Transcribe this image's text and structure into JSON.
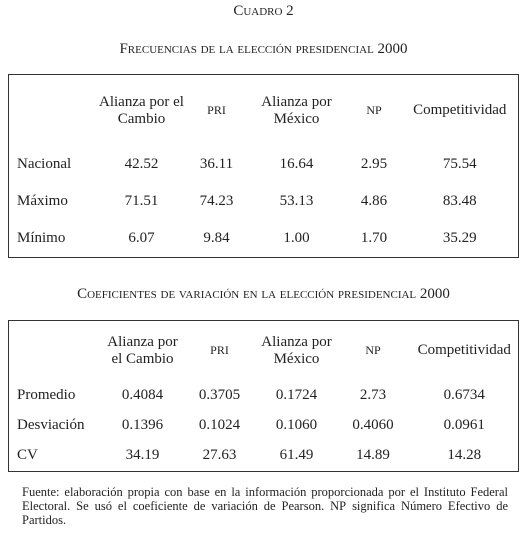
{
  "caption": "Cuadro 2",
  "table1": {
    "title": "Frecuencias de la elección presidencial 2000",
    "header": [
      "",
      "Alianza por el Cambio",
      "PRI",
      "Alianza por México",
      "NP",
      "Competitividad"
    ],
    "rows": [
      [
        "Nacional",
        "42.52",
        "36.11",
        "16.64",
        "2.95",
        "75.54"
      ],
      [
        "Máximo",
        "71.51",
        "74.23",
        "53.13",
        "4.86",
        "83.48"
      ],
      [
        "Mínimo",
        "6.07",
        "9.84",
        "1.00",
        "1.70",
        "35.29"
      ]
    ]
  },
  "table2": {
    "title": "Coeficientes de variación en la elección presidencial 2000",
    "header": [
      "",
      "Alianza por el Cambio",
      "PRI",
      "Alianza por México",
      "NP",
      "Competitividad"
    ],
    "rows": [
      [
        "Promedio",
        "0.4084",
        "0.3705",
        "0.1724",
        "2.73",
        "0.6734"
      ],
      [
        "Desviación",
        "0.1396",
        "0.1024",
        "0.1060",
        "0.4060",
        "0.0961"
      ],
      [
        "CV",
        "34.19",
        "27.63",
        "61.49",
        "14.89",
        "14.28"
      ]
    ]
  },
  "footnote": [
    "Fuente: elaboración propia con base en la información proporcionada por el Instituto Federal Electoral. Se usó el coeficiente de variación de Pearson.",
    "NP",
    "significa Número Efectivo de Partidos."
  ]
}
